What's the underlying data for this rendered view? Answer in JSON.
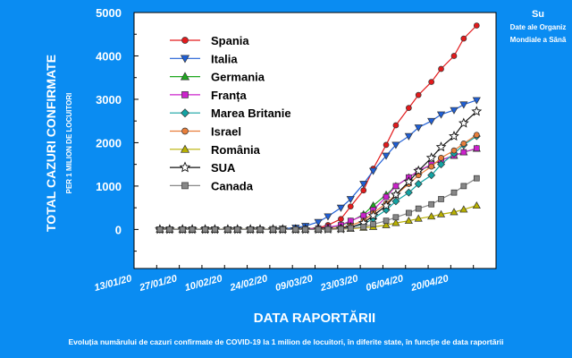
{
  "source": {
    "title": "Su",
    "line1": "Date ale Organiz",
    "line2": "Mondiale a Sănă"
  },
  "caption": "Evoluția numărului de cazuri confirmate de COVID-19 la 1 milion de locuitori, în diferite state, în funcție de data raportării",
  "colors": {
    "background": "#0a8cf2",
    "plot_area": "#ffffff"
  },
  "chart_data": {
    "type": "line",
    "xlabel": "DATA RAPORTĂRII",
    "ylabel": "TOTAL CAZURI CONFIRMATE",
    "ylabel_sub": "PER 1 MILION DE LOCUITORI",
    "ylim": [
      -900,
      5000
    ],
    "yticks": [
      0,
      1000,
      2000,
      3000,
      4000,
      5000
    ],
    "xlim": [
      "2020-01-13",
      "2020-05-04"
    ],
    "xticks": [
      "13/01/20",
      "27/01/20",
      "10/02/20",
      "24/02/20",
      "09/03/20",
      "23/03/20",
      "06/04/20",
      "20/04/20"
    ],
    "grid": false,
    "legend_position": "top-left",
    "x_dates": [
      "2020-01-21",
      "2020-01-24",
      "2020-01-28",
      "2020-01-31",
      "2020-02-04",
      "2020-02-07",
      "2020-02-11",
      "2020-02-14",
      "2020-02-18",
      "2020-02-21",
      "2020-02-25",
      "2020-02-28",
      "2020-03-03",
      "2020-03-06",
      "2020-03-10",
      "2020-03-13",
      "2020-03-17",
      "2020-03-20",
      "2020-03-24",
      "2020-03-27",
      "2020-03-31",
      "2020-04-03",
      "2020-04-07",
      "2020-04-10",
      "2020-04-14",
      "2020-04-17",
      "2020-04-21",
      "2020-04-24",
      "2020-04-28"
    ],
    "series": [
      {
        "name": "Spania",
        "color": "#e31a1c",
        "marker": "circle",
        "values": [
          0,
          0,
          0,
          0,
          0,
          0,
          0,
          0,
          0,
          0,
          0,
          1,
          4,
          10,
          35,
          100,
          240,
          530,
          900,
          1400,
          1950,
          2400,
          2800,
          3100,
          3400,
          3700,
          4000,
          4400,
          4700
        ]
      },
      {
        "name": "Italia",
        "color": "#1f5fd6",
        "marker": "triangle-down",
        "values": [
          0,
          0,
          0,
          0,
          0,
          0,
          0,
          0,
          0,
          0,
          5,
          15,
          40,
          80,
          170,
          300,
          500,
          700,
          1050,
          1350,
          1700,
          1950,
          2150,
          2350,
          2500,
          2650,
          2750,
          2880,
          2980
        ]
      },
      {
        "name": "Germania",
        "color": "#1fa81f",
        "marker": "triangle-up",
        "values": [
          0,
          0,
          0,
          0,
          0,
          0,
          0,
          0,
          0,
          0,
          0,
          1,
          3,
          8,
          20,
          45,
          90,
          180,
          350,
          550,
          800,
          1000,
          1200,
          1350,
          1480,
          1600,
          1700,
          1780,
          1860
        ]
      },
      {
        "name": "Franța",
        "color": "#cc22cc",
        "marker": "square",
        "values": [
          0,
          0,
          0,
          0,
          0,
          0,
          0,
          0,
          0,
          0,
          0,
          1,
          3,
          10,
          25,
          50,
          100,
          200,
          320,
          450,
          750,
          1000,
          1200,
          1350,
          1500,
          1600,
          1700,
          1780,
          1870
        ]
      },
      {
        "name": "Marea Britanie",
        "color": "#13a3a3",
        "marker": "diamond",
        "values": [
          0,
          0,
          0,
          0,
          0,
          0,
          0,
          0,
          0,
          0,
          0,
          0,
          1,
          3,
          5,
          10,
          30,
          60,
          120,
          250,
          450,
          650,
          850,
          1050,
          1250,
          1500,
          1750,
          1950,
          2150
        ]
      },
      {
        "name": "Israel",
        "color": "#e87e3a",
        "marker": "circle",
        "values": [
          0,
          0,
          0,
          0,
          0,
          0,
          0,
          0,
          0,
          0,
          0,
          0,
          1,
          2,
          6,
          15,
          40,
          90,
          200,
          380,
          600,
          800,
          1050,
          1250,
          1450,
          1650,
          1820,
          1980,
          2180
        ]
      },
      {
        "name": "România",
        "color": "#b8b000",
        "marker": "triangle-up",
        "values": [
          0,
          0,
          0,
          0,
          0,
          0,
          0,
          0,
          0,
          0,
          0,
          0,
          0,
          1,
          2,
          5,
          10,
          18,
          40,
          60,
          100,
          150,
          200,
          250,
          300,
          350,
          400,
          460,
          550
        ]
      },
      {
        "name": "SUA",
        "color": "#111111",
        "marker": "star",
        "values": [
          0,
          0,
          0,
          0,
          0,
          0,
          0,
          0,
          0,
          0,
          0,
          0,
          0,
          1,
          3,
          6,
          15,
          45,
          150,
          320,
          550,
          800,
          1100,
          1350,
          1650,
          1900,
          2150,
          2450,
          2720
        ]
      },
      {
        "name": "Canada",
        "color": "#888888",
        "marker": "square",
        "values": [
          0,
          0,
          0,
          0,
          0,
          0,
          0,
          0,
          0,
          0,
          0,
          0,
          0,
          1,
          2,
          5,
          10,
          30,
          60,
          120,
          200,
          280,
          380,
          480,
          580,
          700,
          850,
          1000,
          1180
        ]
      }
    ]
  }
}
